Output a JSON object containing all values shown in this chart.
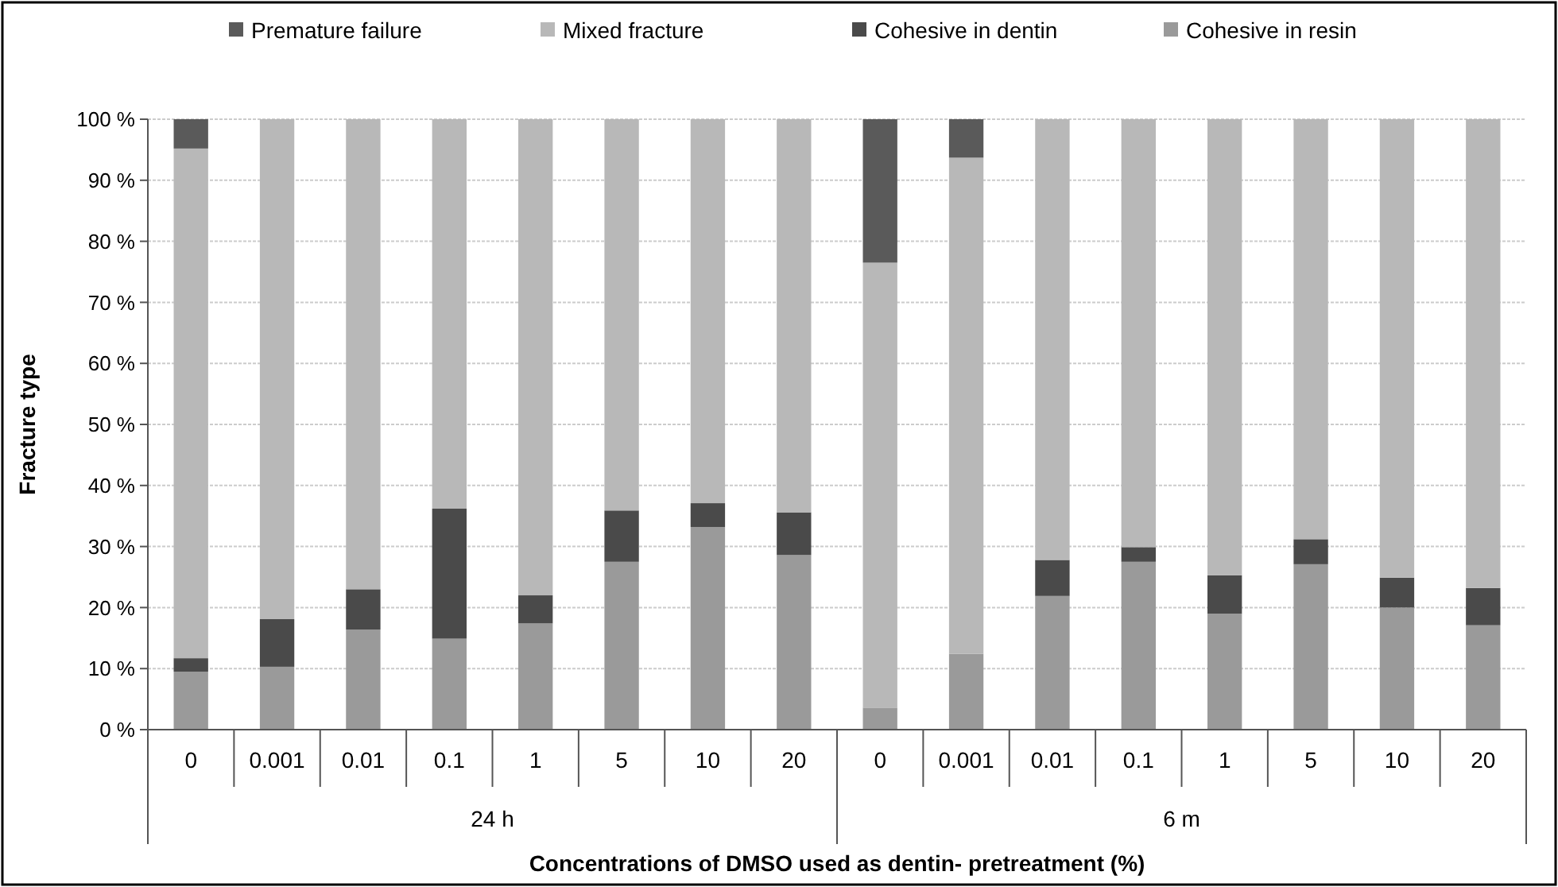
{
  "chart_data": {
    "type": "bar",
    "stacked": true,
    "xlabel": "Concentrations of DMSO used as dentin- pretreatment (%)",
    "ylabel": "Fracture type",
    "categories": [
      "0",
      "0.001",
      "0.01",
      "0.1",
      "1",
      "5",
      "10",
      "20",
      "0",
      "0.001",
      "0.01",
      "0.1",
      "1",
      "5",
      "10",
      "20"
    ],
    "annotations": [
      "24 h",
      "6 m"
    ],
    "series": [
      {
        "name": "Cohesive in resin",
        "color": "#9a9a9a",
        "values": [
          9.5,
          10.3,
          16.4,
          14.9,
          17.4,
          27.5,
          33.2,
          28.6,
          3.6,
          12.4,
          21.9,
          27.5,
          19.0,
          27.1,
          20.0,
          17.1
        ]
      },
      {
        "name": "Cohesive in dentin",
        "color": "#4a4a4a",
        "values": [
          2.2,
          7.8,
          6.6,
          21.3,
          4.6,
          8.4,
          3.9,
          7.0,
          0,
          0,
          5.9,
          2.4,
          6.3,
          4.1,
          4.9,
          6.1
        ]
      },
      {
        "name": "Mixed fracture",
        "color": "#b8b8b8",
        "values": [
          83.5,
          81.9,
          77.0,
          63.8,
          78.0,
          64.1,
          62.9,
          64.4,
          72.9,
          81.3,
          72.2,
          70.1,
          74.7,
          68.8,
          75.1,
          76.8
        ]
      },
      {
        "name": "Premature failure",
        "color": "#5a5a5a",
        "values": [
          4.8,
          0,
          0,
          0,
          0,
          0,
          0,
          0,
          23.5,
          6.3,
          0,
          0,
          0,
          0,
          0,
          0
        ]
      }
    ],
    "ylim": [
      0,
      100
    ],
    "yticks": [
      {
        "value": 0,
        "label": "0 %"
      },
      {
        "value": 10,
        "label": "10 %"
      },
      {
        "value": 20,
        "label": "20 %"
      },
      {
        "value": 30,
        "label": "30 %"
      },
      {
        "value": 40,
        "label": "40 %"
      },
      {
        "value": 50,
        "label": "50 %"
      },
      {
        "value": 60,
        "label": "60 %"
      },
      {
        "value": 70,
        "label": "70 %"
      },
      {
        "value": 80,
        "label": "80 %"
      },
      {
        "value": 90,
        "label": "90 %"
      },
      {
        "value": 100,
        "label": "100 %"
      }
    ],
    "grid": "y",
    "legend": "top"
  }
}
